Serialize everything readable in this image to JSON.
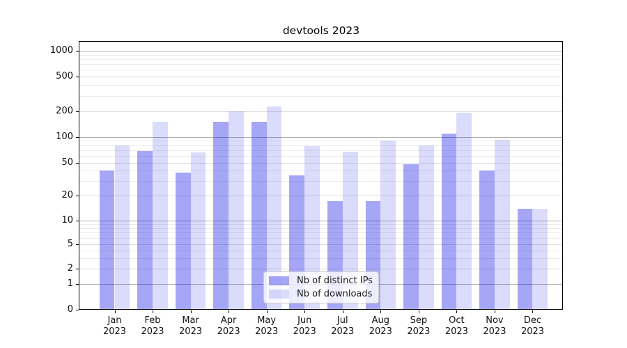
{
  "window": {
    "title": "devtools 2023"
  },
  "chart_data": {
    "type": "bar",
    "title": "devtools 2023",
    "xlabel": "",
    "ylabel": "",
    "yscale": "symlog",
    "ylim": [
      0,
      1000
    ],
    "grid": true,
    "legend_position": "lower center",
    "categories": [
      "Jan 2023",
      "Feb 2023",
      "Mar 2023",
      "Apr 2023",
      "May 2023",
      "Jun 2023",
      "Jul 2023",
      "Aug 2023",
      "Sep 2023",
      "Oct 2023",
      "Nov 2023",
      "Dec 2023"
    ],
    "series": [
      {
        "name": "Nb of distinct IPs",
        "values": [
          40,
          68,
          38,
          150,
          152,
          35,
          17,
          17,
          48,
          110,
          40,
          14
        ]
      },
      {
        "name": "Nb of downloads",
        "values": [
          80,
          150,
          66,
          200,
          230,
          78,
          67,
          91,
          79,
          195,
          93,
          14
        ]
      }
    ],
    "yticks": [
      0,
      1,
      2,
      5,
      10,
      20,
      50,
      100,
      200,
      500,
      1000
    ],
    "minor_yticks": [
      3,
      4,
      6,
      7,
      8,
      9,
      30,
      40,
      60,
      70,
      80,
      90,
      300,
      400,
      600,
      700,
      800,
      900
    ]
  },
  "legend": {
    "items": [
      {
        "label": "Nb of distinct IPs",
        "color": "rgba(0,0,230,0.35)"
      },
      {
        "label": "Nb of downloads",
        "color": "rgba(0,0,230,0.14)"
      }
    ]
  },
  "colors": {
    "bar_distinct_ips": "rgba(0,0,230,0.35)",
    "bar_downloads": "rgba(0,0,230,0.14)",
    "grid_power10": "#b0b0b0",
    "grid_labeled": "#dcdcdc",
    "grid_minor": "#ececec",
    "spine": "#000000",
    "background": "#ffffff"
  }
}
